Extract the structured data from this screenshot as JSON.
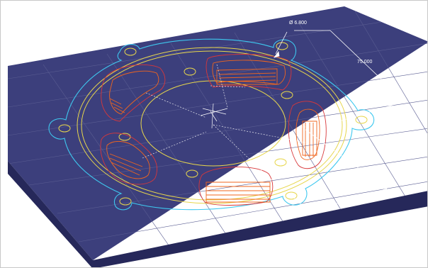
{
  "viewport": {
    "dimension_labels": {
      "hole_diameter": "Ø 6.800",
      "vertical_distance": "75.000",
      "horizontal_distance": "45.000"
    }
  },
  "colors": {
    "plate_top": "#3c3f7c",
    "plate_side": "#2d2f6a",
    "plate_front": "#26285a",
    "grid": "#5a5d92",
    "outline_cyan": "#3ec8ef",
    "rings_yellow": "#e7d64c",
    "toolpath_orange": "#f0651e",
    "toolpath_red": "#d8373a",
    "dimension_white": "#ffffff"
  }
}
